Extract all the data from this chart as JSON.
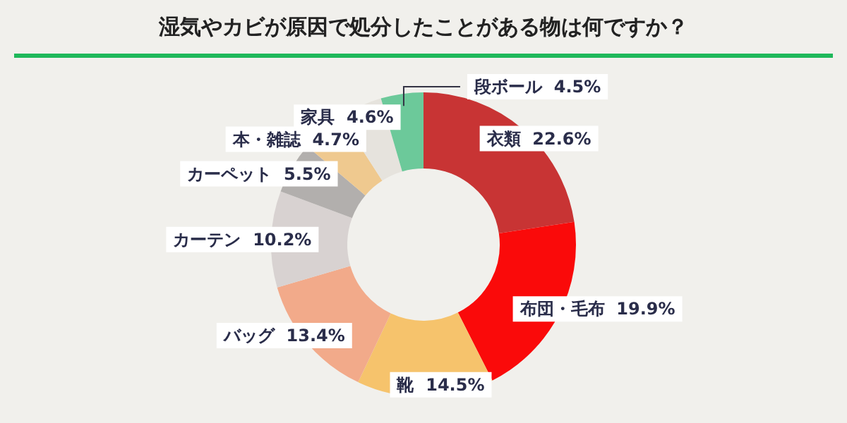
{
  "chart_data": {
    "type": "donut",
    "title": "湿気やカビが原因で処分したことがある物は何ですか？",
    "categories": [
      "衣類",
      "布団・毛布",
      "靴",
      "バッグ",
      "カーテン",
      "カーペット",
      "本・雑誌",
      "家具",
      "段ボール"
    ],
    "values": [
      22.6,
      19.9,
      14.5,
      13.4,
      10.2,
      5.5,
      4.7,
      4.6,
      4.5
    ],
    "value_labels": [
      "22.6%",
      "19.9%",
      "14.5%",
      "13.4%",
      "10.2%",
      "5.5%",
      "4.7%",
      "4.6%",
      "4.5%"
    ],
    "colors": [
      "#c83434",
      "#fa0a0a",
      "#f6c36c",
      "#f2aa8a",
      "#d8d2d1",
      "#b2afad",
      "#efc98f",
      "#e6e3dd",
      "#6cc99a"
    ],
    "legend": false
  }
}
